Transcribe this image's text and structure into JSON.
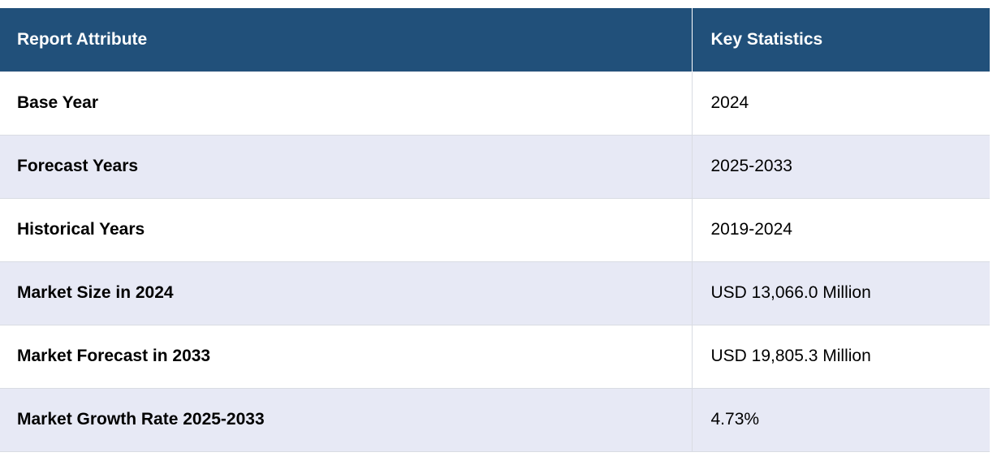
{
  "table": {
    "headers": [
      "Report Attribute",
      "Key Statistics"
    ],
    "rows": [
      [
        "Base Year",
        "2024"
      ],
      [
        "Forecast Years",
        "2025-2033"
      ],
      [
        "Historical Years",
        "2019-2024"
      ],
      [
        "Market Size in 2024",
        "USD 13,066.0 Million"
      ],
      [
        "Market Forecast in 2033",
        "USD 19,805.3 Million"
      ],
      [
        "Market Growth Rate 2025-2033",
        "4.73%"
      ]
    ]
  },
  "colors": {
    "header_bg": "#21507a",
    "header_text": "#ffffff",
    "row_alt_bg": "#e7e9f5",
    "row_bg": "#ffffff",
    "border": "#d9dce3"
  }
}
